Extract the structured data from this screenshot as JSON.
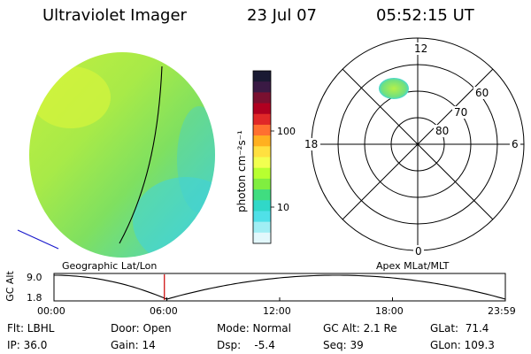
{
  "header": {
    "title": "Ultraviolet Imager",
    "date": "23 Jul 07",
    "time": "05:52:15 UT"
  },
  "colorbar": {
    "label": "photon cm⁻²s⁻¹",
    "ticks": [
      "100",
      "10"
    ],
    "colors": [
      "#1a1a33",
      "#3a1a44",
      "#7a1030",
      "#b00020",
      "#e02828",
      "#ff7030",
      "#ffb020",
      "#ffe040",
      "#f2ff50",
      "#b8ff30",
      "#80ee40",
      "#40dd80",
      "#30d8c8",
      "#50e0e8",
      "#a0eef4",
      "#e2f8fc"
    ]
  },
  "polar_plot": {
    "hour_labels": {
      "top": "12",
      "left": "18",
      "right": "6",
      "bottom": "0"
    },
    "lat_labels": [
      "60",
      "70",
      "80"
    ]
  },
  "labels": {
    "left_projection": "Geographic Lat/Lon",
    "right_projection": "Apex MLat/MLT"
  },
  "altitude_strip": {
    "axis_label": "GC Alt",
    "y_max": "9.0",
    "y_min": "1.8",
    "x_ticks": [
      "00:00",
      "06:00",
      "12:00",
      "18:00",
      "23:59"
    ],
    "current_time_marker_hours": 5.87,
    "marker_color": "#cc0000"
  },
  "info": {
    "flt": "Flt: LBHL",
    "door": "Door: Open",
    "mode": "Mode: Normal",
    "gc_alt": "GC Alt: 2.1 Re",
    "glat": "GLat:  71.4",
    "ip": "IP: 36.0",
    "gain": "Gain: 14",
    "dsp": "Dsp:    -5.4",
    "seq": "Seq: 39",
    "glon": "GLon: 109.3"
  }
}
